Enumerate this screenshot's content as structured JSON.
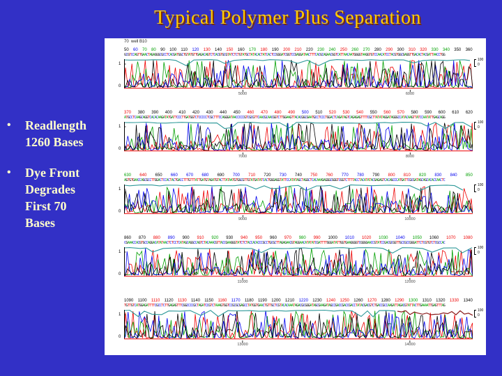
{
  "slide": {
    "title": "Typical Polymer Plus Separation",
    "bullet_char": "•",
    "bullets": [
      "Readlength\n1260 Bases",
      "Dye Front\nDegrades\nFirst 70\nBases"
    ]
  },
  "colors": {
    "background": "#3230C6",
    "title": "#FFCC00",
    "bullet_text": "#FFFFCC",
    "panel_bg": "#FFFFFF",
    "base_a_green": "#00A000",
    "base_c_blue": "#0000EE",
    "base_g_black": "#000000",
    "base_t_red": "#EE0000",
    "quality_line": "#2E9999",
    "quality_line_degraded": "#8B1A1A"
  },
  "panel": {
    "well_label": "70  well B10",
    "y_axis_labels": [
      "1",
      "0"
    ],
    "right_scale_labels": [
      "100",
      "0"
    ],
    "traces": [
      {
        "base_numbers": [
          50,
          60,
          70,
          80,
          90,
          100,
          110,
          120,
          130,
          140,
          150,
          160,
          170,
          180,
          190,
          200,
          210,
          220,
          230,
          240,
          250,
          260,
          270,
          280,
          290,
          300,
          310,
          320,
          330,
          340,
          350,
          360
        ],
        "scan_ticks": [
          "5000",
          "6000"
        ],
        "quality_line_drop": false
      },
      {
        "base_numbers": [
          370,
          380,
          390,
          400,
          410,
          420,
          430,
          440,
          450,
          460,
          470,
          480,
          490,
          500,
          510,
          520,
          530,
          540,
          550,
          560,
          570,
          580,
          590,
          600,
          610,
          620
        ],
        "scan_ticks": [
          "7000",
          "8000"
        ],
        "quality_line_drop": false
      },
      {
        "base_numbers": [
          630,
          640,
          650,
          660,
          670,
          680,
          690,
          700,
          710,
          720,
          730,
          740,
          750,
          760,
          770,
          780,
          790,
          800,
          810,
          820,
          830,
          840,
          850
        ],
        "scan_ticks": [
          "9000",
          "10000"
        ],
        "quality_line_drop": false
      },
      {
        "base_numbers": [
          860,
          870,
          880,
          890,
          900,
          910,
          920,
          930,
          940,
          950,
          960,
          970,
          980,
          990,
          1000,
          1010,
          1020,
          1030,
          1040,
          1050,
          1060,
          1070,
          1080
        ],
        "scan_ticks": [
          "11000",
          "12000"
        ],
        "quality_line_drop": false
      },
      {
        "base_numbers": [
          1090,
          1100,
          1110,
          1120,
          1130,
          1140,
          1150,
          1160,
          1170,
          1180,
          1190,
          1200,
          1210,
          1220,
          1230,
          1240,
          1250,
          1260,
          1270,
          1280,
          1290,
          1300,
          1310,
          1320,
          1330,
          1340
        ],
        "scan_ticks": [
          "13000",
          "14000"
        ],
        "quality_line_drop": true
      }
    ]
  }
}
